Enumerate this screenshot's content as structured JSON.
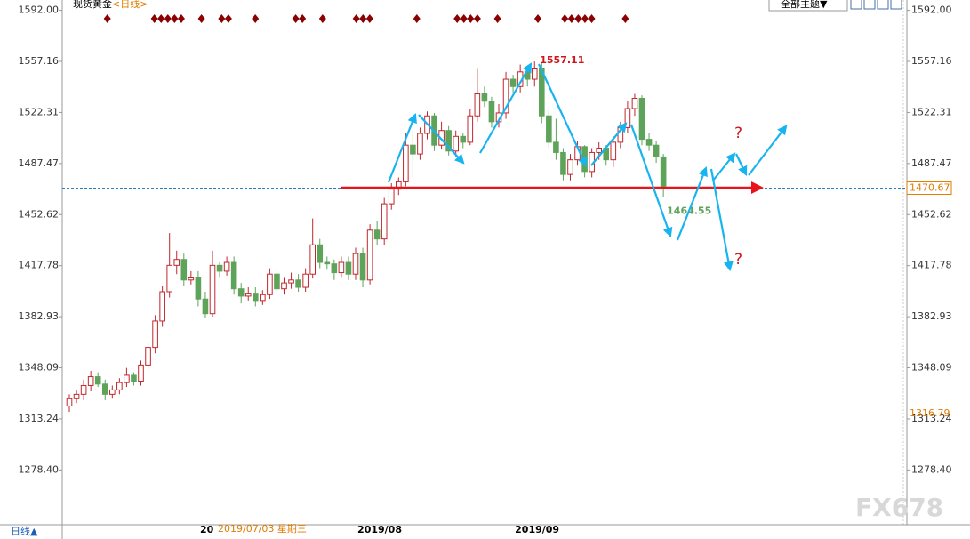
{
  "chart_data": {
    "type": "candlestick",
    "title": "现货黄金",
    "subtitle": "<日线>",
    "theme_button": "全部主题▼",
    "timeframe_button": "日线▲",
    "cursor_date": "2019/07/03 星期三",
    "watermark": "FX678",
    "question_marks": [
      "?",
      "?"
    ],
    "last_price": 1470.67,
    "reference_price": 1316.79,
    "up_color": "#c0272d",
    "down_color": "#5ea35a",
    "ylim": [
      1241,
      1596
    ],
    "yticks": [
      {
        "value": 1592,
        "label": "1592.00"
      },
      1557.16,
      1522.31,
      1487.47,
      1452.62,
      1417.78,
      1382.93,
      1348.09,
      1313.24,
      {
        "value": 1278.4,
        "label": "1278.40"
      }
    ],
    "categories": [
      null,
      null,
      null,
      null,
      null,
      null,
      null,
      null,
      null,
      null,
      null,
      null,
      null,
      null,
      null,
      null,
      null,
      null,
      null,
      "20",
      null,
      null,
      null,
      null,
      null,
      null,
      null,
      null,
      null,
      null,
      null,
      null,
      null,
      null,
      null,
      null,
      null,
      null,
      null,
      null,
      null,
      "2019/08",
      null,
      null,
      null,
      null,
      null,
      null,
      null,
      null,
      null,
      null,
      null,
      null,
      null,
      null,
      null,
      null,
      null,
      null,
      null,
      null,
      null,
      "2019/09",
      null,
      null,
      null,
      null,
      null,
      null,
      null,
      null,
      null,
      null,
      null,
      null,
      null,
      null,
      null,
      null,
      null,
      null,
      null,
      null
    ],
    "open": [
      1322,
      1327,
      1330,
      1336,
      1342,
      1337,
      1330,
      1333,
      1338,
      1343,
      1339,
      1350,
      1362,
      1380,
      1400,
      1418,
      1422,
      1408,
      1410,
      1395,
      1385,
      1418,
      1414,
      1420,
      1402,
      1397,
      1399,
      1394,
      1398,
      1412,
      1402,
      1406,
      1408,
      1403,
      1412,
      1432,
      1420,
      1419,
      1413,
      1420,
      1412,
      1426,
      1408,
      1442,
      1436,
      1460,
      1470,
      1475,
      1500,
      1494,
      1508,
      1520,
      1500,
      1510,
      1496,
      1506,
      1502,
      1520,
      1535,
      1530,
      1516,
      1522,
      1545,
      1540,
      1550,
      1545,
      1552,
      1520,
      1502,
      1495,
      1480,
      1490,
      1499,
      1482,
      1495,
      1498,
      1490,
      1502,
      1512,
      1525,
      1532,
      1504,
      1500,
      1492
    ],
    "high": [
      1330,
      1333,
      1340,
      1346,
      1345,
      1340,
      1336,
      1341,
      1348,
      1345,
      1353,
      1366,
      1384,
      1404,
      1440,
      1428,
      1426,
      1414,
      1414,
      1400,
      1428,
      1420,
      1424,
      1424,
      1406,
      1403,
      1403,
      1401,
      1416,
      1416,
      1410,
      1413,
      1412,
      1416,
      1450,
      1436,
      1424,
      1422,
      1424,
      1424,
      1430,
      1430,
      1446,
      1448,
      1464,
      1474,
      1478,
      1508,
      1510,
      1512,
      1523,
      1522,
      1516,
      1513,
      1510,
      1508,
      1525,
      1552,
      1540,
      1533,
      1528,
      1550,
      1548,
      1555,
      1553,
      1557.11,
      1556,
      1524,
      1518,
      1498,
      1494,
      1503,
      1500,
      1498,
      1502,
      1500,
      1506,
      1516,
      1530,
      1535,
      1534,
      1508,
      1503,
      1494
    ],
    "low": [
      1318,
      1324,
      1326,
      1332,
      1335,
      1326,
      1327,
      1330,
      1335,
      1336,
      1336,
      1346,
      1358,
      1376,
      1396,
      1412,
      1404,
      1405,
      1390,
      1382,
      1383,
      1410,
      1411,
      1398,
      1392,
      1394,
      1390,
      1391,
      1395,
      1398,
      1398,
      1402,
      1400,
      1400,
      1409,
      1416,
      1415,
      1408,
      1410,
      1408,
      1408,
      1403,
      1405,
      1432,
      1432,
      1456,
      1466,
      1472,
      1478,
      1490,
      1504,
      1496,
      1497,
      1493,
      1492,
      1498,
      1500,
      1516,
      1526,
      1512,
      1512,
      1518,
      1536,
      1536,
      1540,
      1540,
      1515,
      1498,
      1490,
      1476,
      1476,
      1486,
      1478,
      1478,
      1490,
      1486,
      1485,
      1498,
      1508,
      1520,
      1500,
      1496,
      1488,
      1464.55
    ],
    "close": [
      1327,
      1330,
      1336,
      1342,
      1337,
      1330,
      1333,
      1338,
      1343,
      1339,
      1350,
      1362,
      1380,
      1400,
      1418,
      1422,
      1408,
      1410,
      1395,
      1385,
      1418,
      1414,
      1420,
      1402,
      1397,
      1399,
      1394,
      1398,
      1412,
      1402,
      1406,
      1408,
      1403,
      1412,
      1432,
      1420,
      1419,
      1413,
      1420,
      1412,
      1426,
      1408,
      1442,
      1436,
      1460,
      1470,
      1475,
      1500,
      1494,
      1508,
      1520,
      1500,
      1510,
      1496,
      1506,
      1502,
      1520,
      1535,
      1530,
      1516,
      1522,
      1545,
      1540,
      1550,
      1545,
      1552,
      1520,
      1502,
      1495,
      1480,
      1490,
      1499,
      1482,
      1495,
      1498,
      1490,
      1502,
      1512,
      1525,
      1532,
      1504,
      1500,
      1492,
      1472
    ]
  }
}
